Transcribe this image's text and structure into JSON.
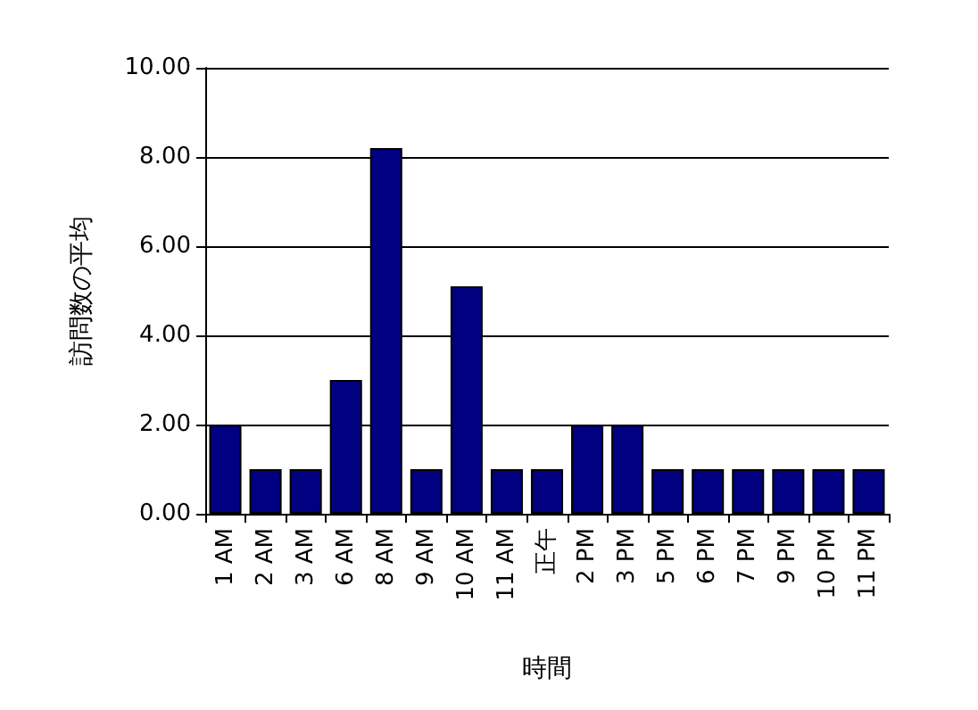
{
  "chart_data": {
    "type": "bar",
    "xlabel": "時間",
    "ylabel": "訪問数の平均",
    "categories": [
      "1 AM",
      "2 AM",
      "3 AM",
      "6 AM",
      "8 AM",
      "9 AM",
      "10 AM",
      "11 AM",
      "正午",
      "2 PM",
      "3 PM",
      "5 PM",
      "6 PM",
      "7 PM",
      "9 PM",
      "10 PM",
      "11 PM"
    ],
    "values": [
      2,
      1,
      1,
      3,
      8.2,
      1,
      5.1,
      1,
      1,
      2,
      2,
      1,
      1,
      1,
      1,
      1,
      1
    ],
    "color": "#000080",
    "ylim": [
      0,
      10
    ],
    "yticks": [
      {
        "value": 0,
        "label": "0.00"
      },
      {
        "value": 2,
        "label": "2.00"
      },
      {
        "value": 4,
        "label": "4.00"
      },
      {
        "value": 6,
        "label": "6.00"
      },
      {
        "value": 8,
        "label": "8.00"
      },
      {
        "value": 10,
        "label": "10.00"
      }
    ],
    "grid": "y"
  }
}
